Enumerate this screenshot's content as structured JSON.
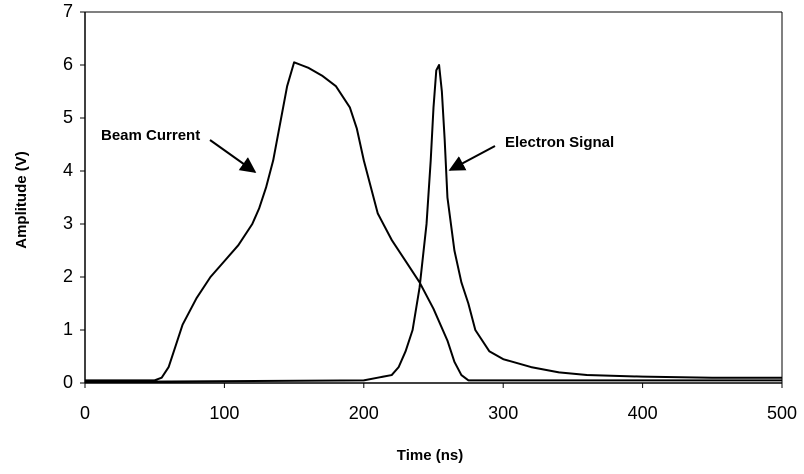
{
  "chart_data": {
    "type": "line",
    "xlabel": "Time (ns)",
    "ylabel": "Amplitude (V)",
    "xlim": [
      0,
      500
    ],
    "xticks": [
      0,
      100,
      200,
      300,
      400,
      500
    ],
    "ylim": [
      0,
      7
    ],
    "yticks": [
      0,
      1,
      2,
      3,
      4,
      5,
      6,
      7
    ],
    "grid": false,
    "series": [
      {
        "name": "Beam Current",
        "color": "#000000",
        "x": [
          0,
          50,
          55,
          60,
          65,
          70,
          80,
          90,
          100,
          110,
          120,
          125,
          130,
          135,
          140,
          145,
          150,
          155,
          160,
          170,
          180,
          190,
          195,
          200,
          205,
          210,
          220,
          230,
          240,
          250,
          260,
          265,
          270,
          275,
          300,
          500
        ],
        "values": [
          0.05,
          0.05,
          0.1,
          0.3,
          0.7,
          1.1,
          1.6,
          2.0,
          2.3,
          2.6,
          3.0,
          3.3,
          3.7,
          4.2,
          4.9,
          5.6,
          6.05,
          6.0,
          5.95,
          5.8,
          5.6,
          5.2,
          4.8,
          4.2,
          3.7,
          3.2,
          2.7,
          2.3,
          1.9,
          1.4,
          0.8,
          0.4,
          0.15,
          0.05,
          0.05,
          0.05
        ]
      },
      {
        "name": "Electron Signal",
        "color": "#000000",
        "x": [
          0,
          200,
          210,
          220,
          225,
          230,
          235,
          240,
          245,
          248,
          250,
          252,
          254,
          256,
          258,
          260,
          265,
          270,
          275,
          280,
          290,
          300,
          320,
          340,
          360,
          400,
          450,
          500
        ],
        "values": [
          0.02,
          0.05,
          0.1,
          0.15,
          0.3,
          0.6,
          1.0,
          1.8,
          3.0,
          4.2,
          5.2,
          5.9,
          6.0,
          5.5,
          4.6,
          3.5,
          2.5,
          1.9,
          1.5,
          1.0,
          0.6,
          0.45,
          0.3,
          0.2,
          0.15,
          0.12,
          0.1,
          0.1
        ]
      }
    ]
  }
}
